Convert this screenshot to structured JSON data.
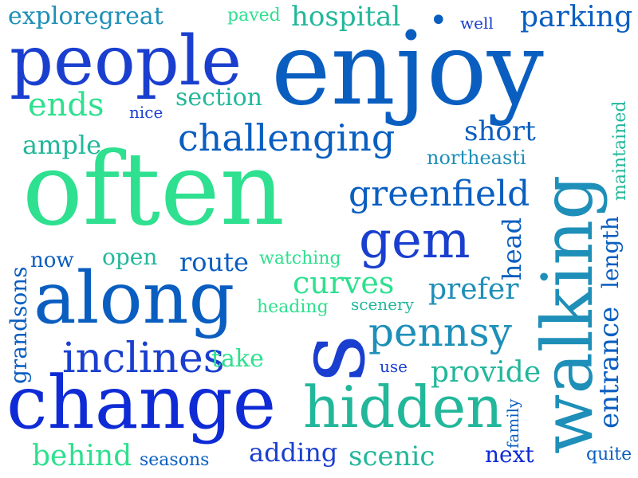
{
  "palette": {
    "deep_blue": "#1a3fcf",
    "medium_blue": "#0a5ec0",
    "teal_blue": "#1e8fb8",
    "teal": "#22b79a",
    "mint": "#2ee08f",
    "royal_blue": "#0f2bd6"
  },
  "words": {
    "exploregreat": "exploregreat",
    "paved": "paved",
    "hospital": "hospital",
    "dot": "•",
    "well": "well",
    "parking": "parking",
    "people": "people",
    "enjoy": "enjoy",
    "ends": "ends",
    "section": "section",
    "nice": "nice",
    "maintained": "maintained",
    "challenging": "challenging",
    "short": "short",
    "ample": "ample",
    "northeasti": "northeasti",
    "often": "often",
    "greenfield": "greenfield",
    "gem": "gem",
    "length": "length",
    "head": "head",
    "walking": "walking",
    "now": "now",
    "open": "open",
    "route": "route",
    "watching": "watching",
    "grandsons": "grandsons",
    "along": "along",
    "curves": "curves",
    "prefer": "prefer",
    "heading": "heading",
    "scenery": "scenery",
    "entrance": "entrance",
    "s": "s",
    "pennsy": "pennsy",
    "inclines": "inclines",
    "take": "take",
    "use": "use",
    "provide": "provide",
    "change": "change",
    "hidden": "hidden",
    "family": "family",
    "behind": "behind",
    "seasons": "seasons",
    "adding": "adding",
    "scenic": "scenic",
    "next": "next",
    "quite": "quite"
  }
}
